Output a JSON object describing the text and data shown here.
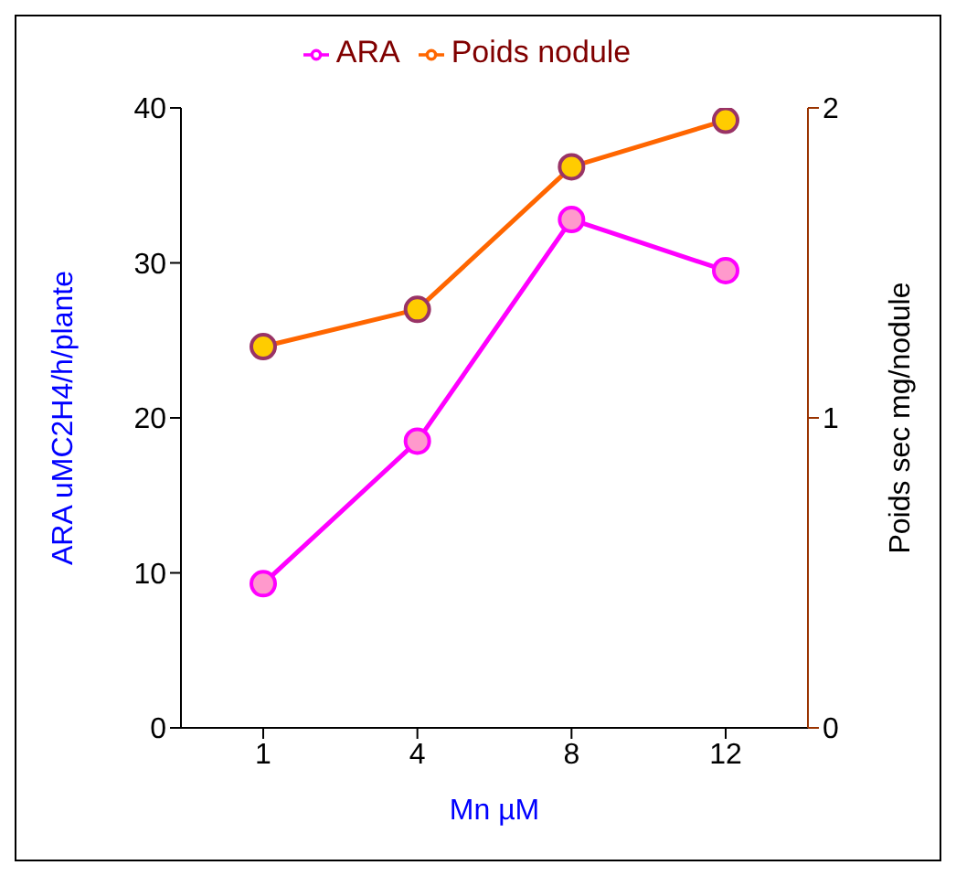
{
  "chart_data": {
    "type": "line",
    "xlabel": "Mn  µM",
    "ylabel": "ARA uMC2H4/h/plante",
    "y2label": "Poids sec  mg/nodule",
    "categories": [
      "1",
      "4",
      "8",
      "12"
    ],
    "series": [
      {
        "name": "ARA",
        "color": "#ff00ff",
        "colors": [
          "#ff99cc",
          "#ff99cc",
          "#ff99cc",
          "#ff99cc"
        ],
        "values": [
          9.3,
          18.5,
          32.8,
          29.5
        ]
      },
      {
        "name": "Poids nodule",
        "color": "#ff6600",
        "colors": [
          "#ffcc00",
          "#ffcc00",
          "#ffcc00",
          "#ffcc00"
        ],
        "values": [
          1.23,
          1.35,
          1.81,
          1.96
        ],
        "axis": "y2"
      }
    ],
    "ylim": [
      0,
      40
    ],
    "yticks": [
      0,
      10,
      20,
      30,
      40
    ],
    "y2lim": [
      0,
      2
    ],
    "y2ticks": [
      0,
      1,
      2
    ],
    "grid": false,
    "legend": "top",
    "marker": "circle",
    "line_style": "solid"
  }
}
